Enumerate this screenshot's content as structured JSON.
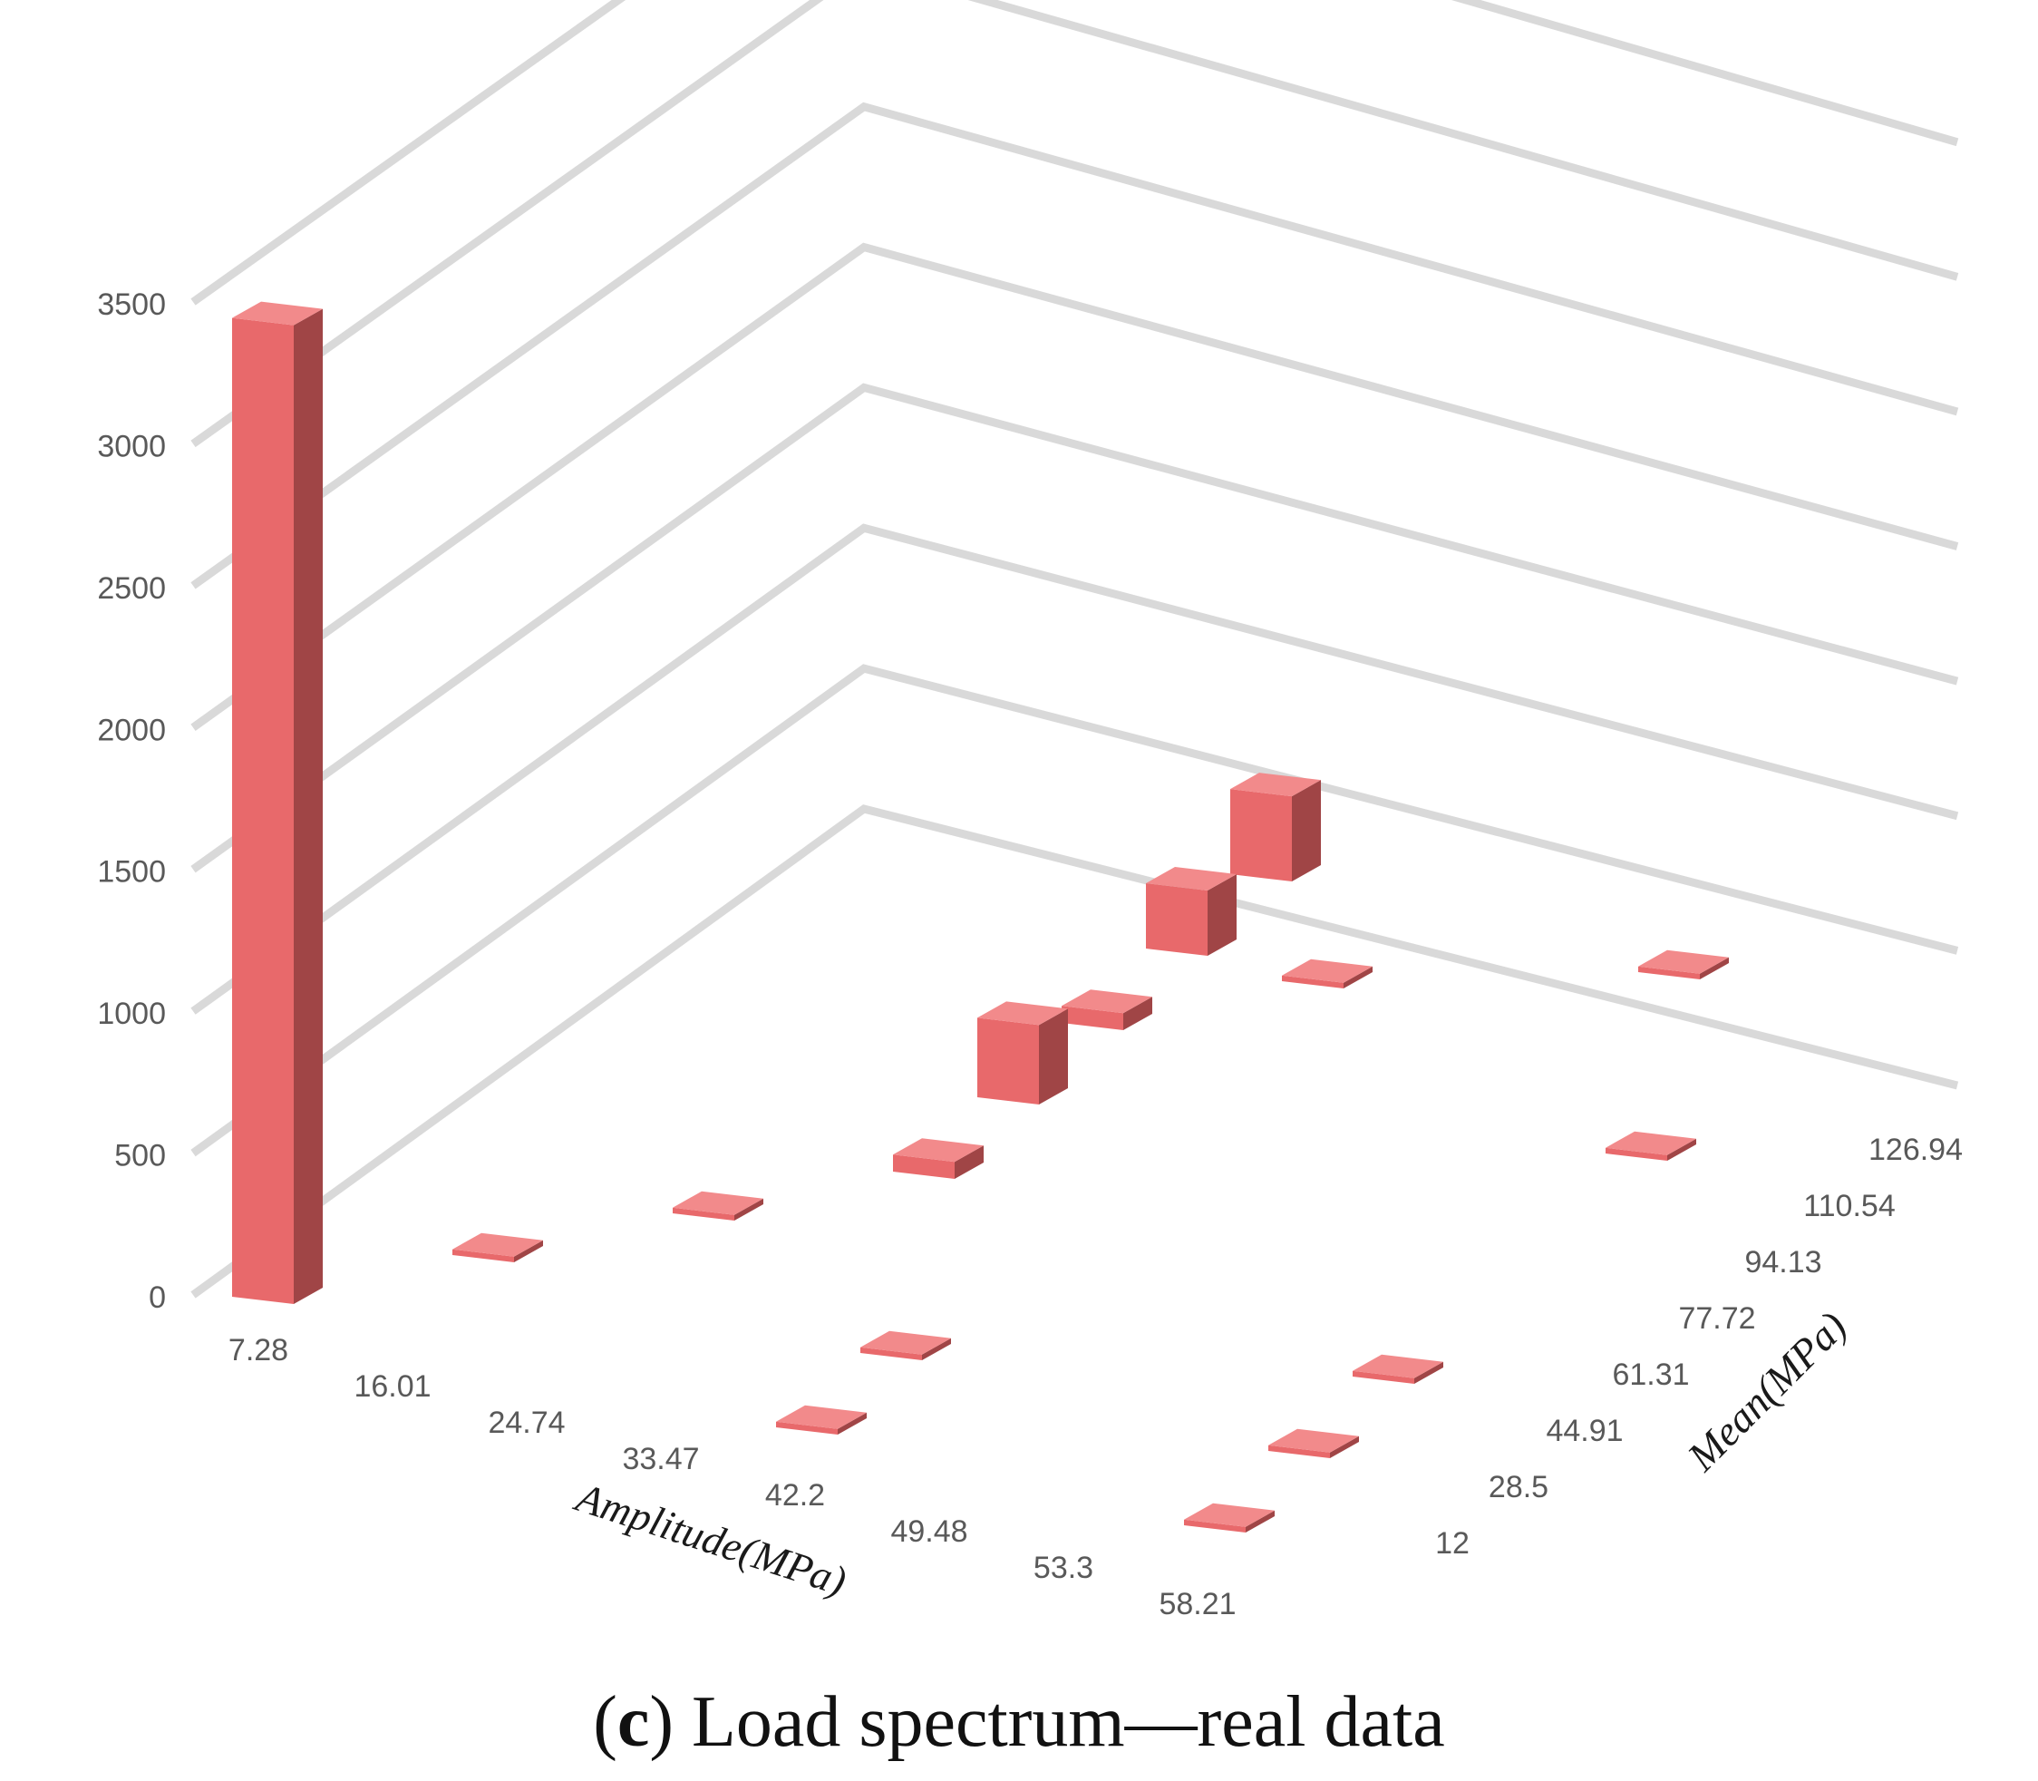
{
  "chart_data": {
    "type": "bar3d",
    "title": "",
    "caption": {
      "prefix": "(",
      "letter": "c",
      "suffix": ") Load spectrum—real data"
    },
    "xlabel": "Amplitude(MPa)",
    "ylabel": "Mean(MPa)",
    "zlabel": "",
    "zlim": [
      0,
      3500
    ],
    "z_ticks": [
      "0",
      "500",
      "1000",
      "1500",
      "2000",
      "2500",
      "3000",
      "3500"
    ],
    "x_categories": [
      "7.28",
      "16.01",
      "24.74",
      "33.47",
      "42.2",
      "49.48",
      "53.3",
      "58.21"
    ],
    "y_categories": [
      "12",
      "28.5",
      "44.91",
      "61.31",
      "77.72",
      "94.13",
      "110.54",
      "126.94"
    ],
    "grid": true,
    "bar_color": "#E8696B",
    "bar_side_color": "#A04546",
    "bar_top_color": "#F28A8B",
    "points": [
      {
        "amplitude": "7.28",
        "mean": "12",
        "value": 3450
      },
      {
        "amplitude": "16.01",
        "mean": "28.5",
        "value": 20
      },
      {
        "amplitude": "24.74",
        "mean": "44.91",
        "value": 20
      },
      {
        "amplitude": "33.47",
        "mean": "61.31",
        "value": 60
      },
      {
        "amplitude": "33.47",
        "mean": "77.72",
        "value": 280
      },
      {
        "amplitude": "33.47",
        "mean": "94.13",
        "value": 60
      },
      {
        "amplitude": "33.47",
        "mean": "110.54",
        "value": 230
      },
      {
        "amplitude": "33.47",
        "mean": "126.94",
        "value": 300
      },
      {
        "amplitude": "53.3",
        "mean": "126.94",
        "value": 20
      },
      {
        "amplitude": "42.2",
        "mean": "12",
        "value": 20
      },
      {
        "amplitude": "42.2",
        "mean": "28.5",
        "value": 20
      },
      {
        "amplitude": "58.21",
        "mean": "12",
        "value": 20
      },
      {
        "amplitude": "58.21",
        "mean": "28.5",
        "value": 20
      },
      {
        "amplitude": "58.21",
        "mean": "44.91",
        "value": 20
      },
      {
        "amplitude": "42.2",
        "mean": "110.54",
        "value": 20
      },
      {
        "amplitude": "58.21",
        "mean": "94.13",
        "value": 20
      }
    ]
  }
}
